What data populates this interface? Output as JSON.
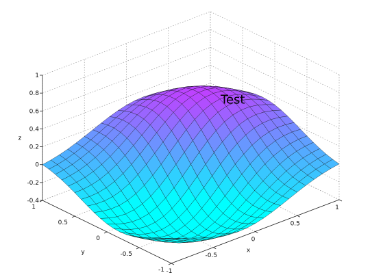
{
  "chart_data": {
    "type": "surface",
    "title": "",
    "xlabel": "x",
    "ylabel": "y",
    "zlabel": "z",
    "xlim": [
      -1,
      1
    ],
    "ylim": [
      -1,
      1
    ],
    "zlim": [
      -0.4,
      1
    ],
    "x_ticks": [
      "-1",
      "-0.5",
      "0",
      "0.5",
      "1"
    ],
    "y_ticks": [
      "-1",
      "-0.5",
      "0",
      "0.5",
      "1"
    ],
    "z_ticks": [
      "-0.4",
      "-0.2",
      "0",
      "0.2",
      "0.4",
      "0.6",
      "0.8",
      "1"
    ],
    "grid": true,
    "colormap": "cool",
    "colormap_low": "#00ffff",
    "colormap_high": "#ff00ff",
    "grid_size": 21,
    "annotation": {
      "text": "Test",
      "x": 0.5,
      "y": 0.0,
      "z": 0.5
    }
  }
}
